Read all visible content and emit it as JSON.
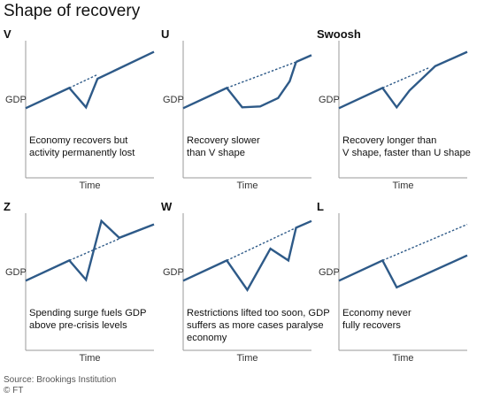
{
  "title": "Shape of recovery",
  "source": "Source: Brookings Institution",
  "copyright": "© FT",
  "colors": {
    "series": "#2e5a88",
    "axis": "#9a9a9a"
  },
  "chart_data": [
    {
      "type": "line",
      "title": "V",
      "ylabel": "GDP",
      "xlabel": "Time",
      "description": [
        "Economy recovers but",
        "activity permanently lost"
      ],
      "x_range": [
        0,
        10
      ],
      "y_range": [
        0,
        10
      ],
      "series": [
        {
          "values": [
            [
              0,
              2.5
            ],
            [
              3.4,
              4.9
            ],
            [
              4.7,
              2.6
            ],
            [
              5.6,
              6.0
            ],
            [
              10,
              9.2
            ]
          ]
        },
        {
          "style": "dashed",
          "values": [
            [
              3.4,
              4.9
            ],
            [
              5.6,
              6.5
            ]
          ]
        }
      ]
    },
    {
      "type": "line",
      "title": "U",
      "ylabel": "GDP",
      "xlabel": "Time",
      "description": [
        "Recovery slower",
        "than V shape"
      ],
      "x_range": [
        0,
        10
      ],
      "y_range": [
        0,
        10
      ],
      "series": [
        {
          "values": [
            [
              0,
              2.5
            ],
            [
              3.4,
              4.9
            ],
            [
              4.6,
              2.6
            ],
            [
              6.0,
              2.7
            ],
            [
              7.4,
              3.7
            ],
            [
              8.3,
              5.7
            ],
            [
              8.8,
              8.0
            ]
          ]
        },
        {
          "values": [
            [
              8.8,
              8.0
            ],
            [
              10,
              8.8
            ]
          ]
        },
        {
          "style": "dashed",
          "values": [
            [
              3.4,
              4.9
            ],
            [
              8.8,
              8.0
            ]
          ]
        }
      ]
    },
    {
      "type": "line",
      "title": "Swoosh",
      "ylabel": "GDP",
      "xlabel": "Time",
      "description": [
        "Recovery longer than",
        "V shape, faster than U shape"
      ],
      "x_range": [
        0,
        10
      ],
      "y_range": [
        0,
        10
      ],
      "series": [
        {
          "values": [
            [
              0,
              2.5
            ],
            [
              3.4,
              4.9
            ],
            [
              4.5,
              2.6
            ],
            [
              5.5,
              4.6
            ],
            [
              7.5,
              7.5
            ],
            [
              10,
              9.2
            ]
          ]
        },
        {
          "style": "dashed",
          "values": [
            [
              3.4,
              4.9
            ],
            [
              7.0,
              7.3
            ]
          ]
        }
      ]
    },
    {
      "type": "line",
      "title": "Z",
      "ylabel": "GDP",
      "xlabel": "Time",
      "description": [
        "Spending surge fuels GDP",
        "above pre-crisis levels"
      ],
      "x_range": [
        0,
        10
      ],
      "y_range": [
        0,
        10
      ],
      "series": [
        {
          "values": [
            [
              0,
              2.5
            ],
            [
              3.4,
              4.9
            ],
            [
              4.7,
              2.6
            ],
            [
              5.9,
              9.6
            ],
            [
              7.3,
              7.6
            ],
            [
              10,
              9.2
            ]
          ]
        },
        {
          "style": "dashed",
          "values": [
            [
              3.4,
              4.9
            ],
            [
              7.3,
              7.5
            ]
          ]
        }
      ]
    },
    {
      "type": "line",
      "title": "W",
      "ylabel": "GDP",
      "xlabel": "Time",
      "description": [
        "Restrictions lifted too soon, GDP",
        "suffers as more cases paralyse",
        "economy"
      ],
      "x_range": [
        0,
        10
      ],
      "y_range": [
        0,
        10
      ],
      "series": [
        {
          "values": [
            [
              0,
              2.5
            ],
            [
              3.4,
              4.9
            ],
            [
              5.0,
              1.4
            ],
            [
              6.8,
              6.3
            ],
            [
              8.2,
              4.9
            ],
            [
              8.8,
              8.8
            ],
            [
              10,
              9.6
            ]
          ]
        },
        {
          "style": "dashed",
          "values": [
            [
              3.4,
              4.9
            ],
            [
              8.8,
              8.8
            ]
          ]
        }
      ]
    },
    {
      "type": "line",
      "title": "L",
      "ylabel": "GDP",
      "xlabel": "Time",
      "description": [
        "Economy never",
        "fully recovers"
      ],
      "x_range": [
        0,
        10
      ],
      "y_range": [
        0,
        10
      ],
      "series": [
        {
          "values": [
            [
              0,
              2.5
            ],
            [
              3.4,
              4.9
            ],
            [
              4.5,
              1.7
            ],
            [
              10,
              5.5
            ]
          ]
        },
        {
          "style": "dashed",
          "values": [
            [
              3.4,
              4.9
            ],
            [
              10,
              9.2
            ]
          ]
        }
      ]
    }
  ]
}
